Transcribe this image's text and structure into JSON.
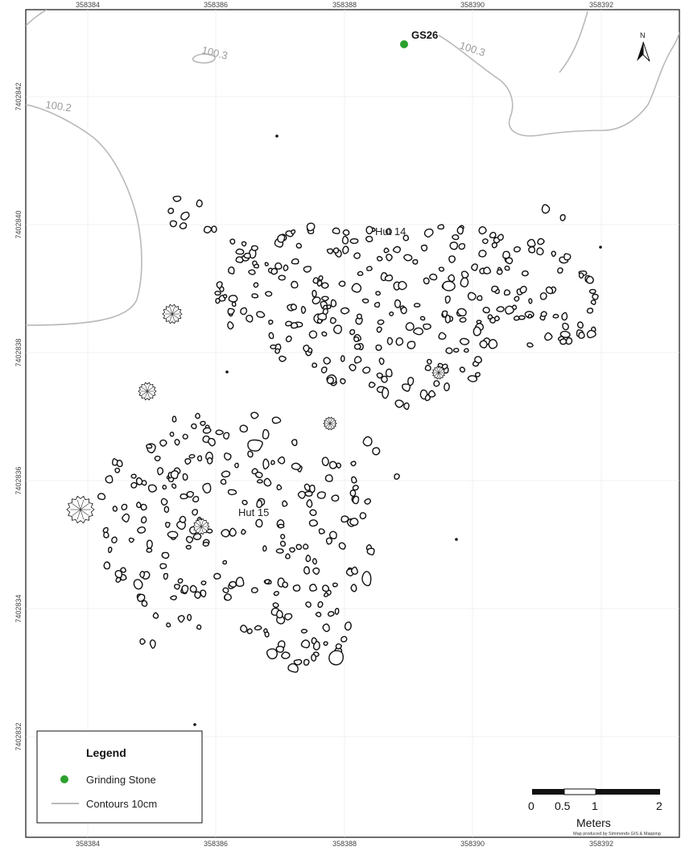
{
  "map": {
    "colors": {
      "grinding_stone": "#2ca02c",
      "contour": "#b9b9b9",
      "stone_outline": "#111111"
    },
    "x_ticks": [
      "358384",
      "358386",
      "358388",
      "358390",
      "358392"
    ],
    "y_ticks": [
      "7402842",
      "7402840",
      "7402838",
      "7402836",
      "7402834",
      "7402832"
    ],
    "contour_labels": [
      "100.3",
      "100.3",
      "100.2"
    ],
    "features": {
      "grinding_stone_label": "GS26",
      "hut14_label": "Hut 14",
      "hut15_label": "Hut 15"
    },
    "north_arrow": {
      "label": "N",
      "icon": "north-arrow-icon"
    },
    "legend": {
      "title": "Legend",
      "items": [
        {
          "label": "Grinding Stone",
          "symbol": "green-dot-icon"
        },
        {
          "label": "Contours 10cm",
          "symbol": "grey-line-icon"
        }
      ]
    },
    "scale_bar": {
      "labels": [
        "0",
        "0.5",
        "1",
        "2"
      ],
      "unit": "Meters"
    },
    "credit": "Map produced by Simmonds GIS & Mapping"
  }
}
